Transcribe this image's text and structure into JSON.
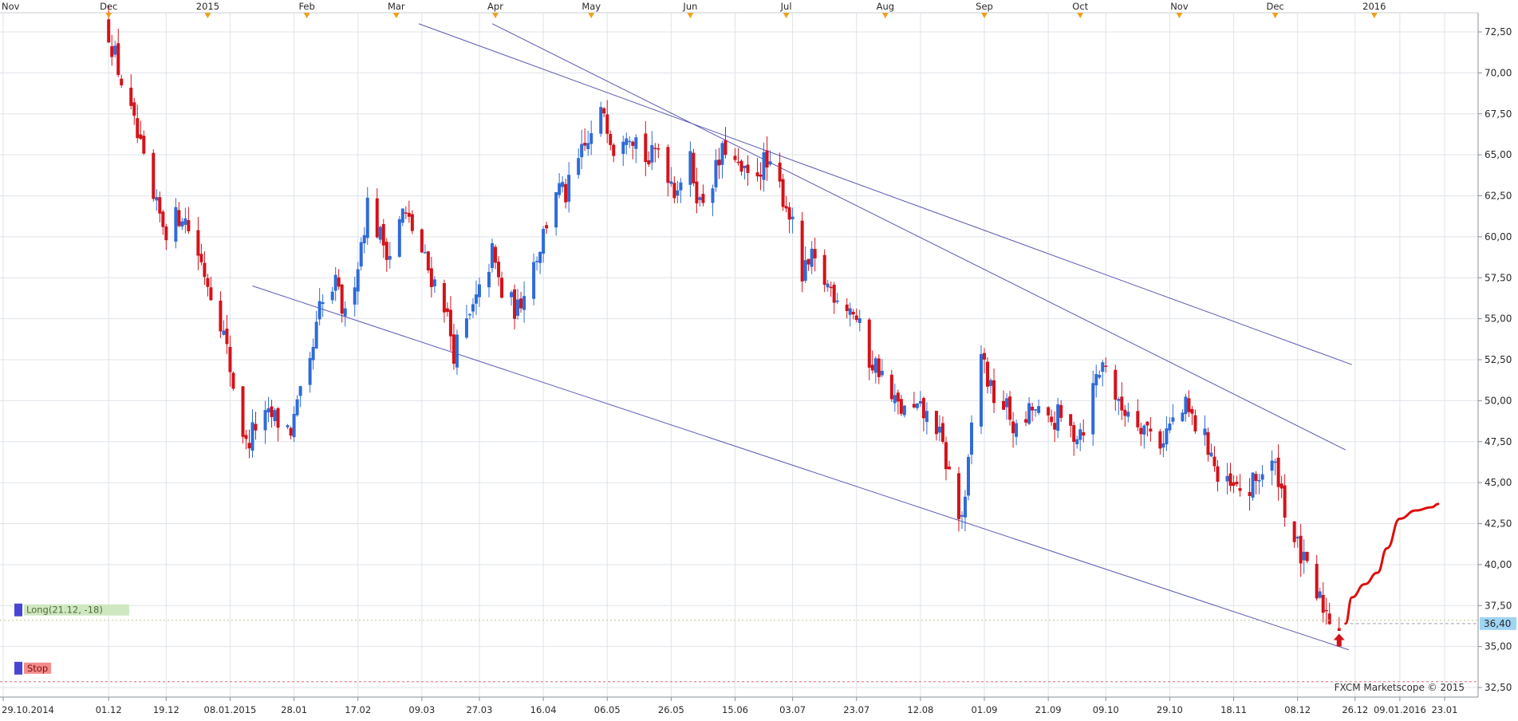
{
  "chart_data": {
    "type": "candlestick",
    "y_axis": {
      "min": 32.5,
      "max": 73.4,
      "ticks": [
        "72,50",
        "70,00",
        "67,50",
        "65,00",
        "62,50",
        "60,00",
        "57,50",
        "55,00",
        "52,50",
        "50,00",
        "47,50",
        "45,00",
        "42,50",
        "40,00",
        "37,50",
        "35,00",
        "32,50"
      ],
      "tick_values": [
        72.5,
        70,
        67.5,
        65,
        62.5,
        60,
        57.5,
        55,
        52.5,
        50,
        47.5,
        45,
        42.5,
        40,
        37.5,
        35,
        32.5
      ]
    },
    "x_axis": {
      "start": "2014-10-29",
      "end": "2016-01-28",
      "date_labels": [
        {
          "date": "2014-10-29",
          "label": "29.10.2014"
        },
        {
          "date": "2014-12-01",
          "label": "01.12"
        },
        {
          "date": "2014-12-19",
          "label": "19.12"
        },
        {
          "date": "2015-01-08",
          "label": "08.01.2015"
        },
        {
          "date": "2015-01-28",
          "label": "28.01"
        },
        {
          "date": "2015-02-17",
          "label": "17.02"
        },
        {
          "date": "2015-03-09",
          "label": "09.03"
        },
        {
          "date": "2015-03-27",
          "label": "27.03"
        },
        {
          "date": "2015-04-16",
          "label": "16.04"
        },
        {
          "date": "2015-05-06",
          "label": "06.05"
        },
        {
          "date": "2015-05-26",
          "label": "26.05"
        },
        {
          "date": "2015-06-15",
          "label": "15.06"
        },
        {
          "date": "2015-07-03",
          "label": "03.07"
        },
        {
          "date": "2015-07-23",
          "label": "23.07"
        },
        {
          "date": "2015-08-12",
          "label": "12.08"
        },
        {
          "date": "2015-09-01",
          "label": "01.09"
        },
        {
          "date": "2015-09-21",
          "label": "21.09"
        },
        {
          "date": "2015-10-09",
          "label": "09.10"
        },
        {
          "date": "2015-10-29",
          "label": "29.10"
        },
        {
          "date": "2015-11-18",
          "label": "18.11"
        },
        {
          "date": "2015-12-08",
          "label": "08.12"
        },
        {
          "date": "2015-12-26",
          "label": "26.12"
        },
        {
          "date": "2016-01-09",
          "label": "09.01.2016"
        },
        {
          "date": "2016-01-23",
          "label": "23.01"
        }
      ],
      "month_labels": [
        {
          "date": "2014-11-01",
          "label": "Nov"
        },
        {
          "date": "2014-12-01",
          "label": "Dec"
        },
        {
          "date": "2015-01-01",
          "label": "2015"
        },
        {
          "date": "2015-02-01",
          "label": "Feb"
        },
        {
          "date": "2015-03-01",
          "label": "Mar"
        },
        {
          "date": "2015-04-01",
          "label": "Apr"
        },
        {
          "date": "2015-05-01",
          "label": "May"
        },
        {
          "date": "2015-06-01",
          "label": "Jun"
        },
        {
          "date": "2015-07-01",
          "label": "Jul"
        },
        {
          "date": "2015-08-01",
          "label": "Aug"
        },
        {
          "date": "2015-09-01",
          "label": "Sep"
        },
        {
          "date": "2015-10-01",
          "label": "Oct"
        },
        {
          "date": "2015-11-01",
          "label": "Nov"
        },
        {
          "date": "2015-12-01",
          "label": "Dec"
        },
        {
          "date": "2016-01-01",
          "label": "2016"
        }
      ]
    },
    "anchors": [
      {
        "date": "2014-12-01",
        "close": 72.5
      },
      {
        "date": "2014-12-05",
        "close": 69.5
      },
      {
        "date": "2014-12-10",
        "close": 66.0
      },
      {
        "date": "2014-12-15",
        "close": 62.0
      },
      {
        "date": "2014-12-19",
        "close": 60.5
      },
      {
        "date": "2014-12-24",
        "close": 61.5
      },
      {
        "date": "2014-12-29",
        "close": 59.0
      },
      {
        "date": "2015-01-05",
        "close": 55.0
      },
      {
        "date": "2015-01-09",
        "close": 51.0
      },
      {
        "date": "2015-01-13",
        "close": 47.2
      },
      {
        "date": "2015-01-16",
        "close": 48.5
      },
      {
        "date": "2015-01-21",
        "close": 49.0
      },
      {
        "date": "2015-01-27",
        "close": 48.2
      },
      {
        "date": "2015-02-02",
        "close": 52.0
      },
      {
        "date": "2015-02-05",
        "close": 55.5
      },
      {
        "date": "2015-02-10",
        "close": 57.0
      },
      {
        "date": "2015-02-13",
        "close": 55.0
      },
      {
        "date": "2015-02-17",
        "close": 58.5
      },
      {
        "date": "2015-02-20",
        "close": 62.0
      },
      {
        "date": "2015-02-24",
        "close": 60.0
      },
      {
        "date": "2015-02-27",
        "close": 59.0
      },
      {
        "date": "2015-03-03",
        "close": 61.5
      },
      {
        "date": "2015-03-06",
        "close": 60.5
      },
      {
        "date": "2015-03-11",
        "close": 58.0
      },
      {
        "date": "2015-03-16",
        "close": 56.0
      },
      {
        "date": "2015-03-19",
        "close": 53.0
      },
      {
        "date": "2015-03-24",
        "close": 55.0
      },
      {
        "date": "2015-03-27",
        "close": 56.5
      },
      {
        "date": "2015-03-31",
        "close": 59.0
      },
      {
        "date": "2015-04-03",
        "close": 56.5
      },
      {
        "date": "2015-04-08",
        "close": 55.5
      },
      {
        "date": "2015-04-10",
        "close": 57.0
      },
      {
        "date": "2015-04-15",
        "close": 59.5
      },
      {
        "date": "2015-04-20",
        "close": 63.0
      },
      {
        "date": "2015-04-23",
        "close": 62.5
      },
      {
        "date": "2015-04-28",
        "close": 65.0
      },
      {
        "date": "2015-05-01",
        "close": 66.0
      },
      {
        "date": "2015-05-05",
        "close": 67.8
      },
      {
        "date": "2015-05-08",
        "close": 65.5
      },
      {
        "date": "2015-05-12",
        "close": 66.8
      },
      {
        "date": "2015-05-15",
        "close": 66.0
      },
      {
        "date": "2015-05-19",
        "close": 64.5
      },
      {
        "date": "2015-05-22",
        "close": 65.5
      },
      {
        "date": "2015-05-27",
        "close": 63.0
      },
      {
        "date": "2015-06-01",
        "close": 64.5
      },
      {
        "date": "2015-06-04",
        "close": 62.0
      },
      {
        "date": "2015-06-09",
        "close": 64.0
      },
      {
        "date": "2015-06-12",
        "close": 65.5
      },
      {
        "date": "2015-06-16",
        "close": 64.0
      },
      {
        "date": "2015-06-19",
        "close": 63.5
      },
      {
        "date": "2015-06-24",
        "close": 64.5
      },
      {
        "date": "2015-06-29",
        "close": 63.0
      },
      {
        "date": "2015-07-02",
        "close": 61.5
      },
      {
        "date": "2015-07-06",
        "close": 57.5
      },
      {
        "date": "2015-07-09",
        "close": 58.5
      },
      {
        "date": "2015-07-14",
        "close": 57.0
      },
      {
        "date": "2015-07-17",
        "close": 56.5
      },
      {
        "date": "2015-07-22",
        "close": 55.5
      },
      {
        "date": "2015-07-27",
        "close": 52.5
      },
      {
        "date": "2015-07-30",
        "close": 52.0
      },
      {
        "date": "2015-08-03",
        "close": 50.0
      },
      {
        "date": "2015-08-07",
        "close": 49.3
      },
      {
        "date": "2015-08-12",
        "close": 49.3
      },
      {
        "date": "2015-08-17",
        "close": 48.5
      },
      {
        "date": "2015-08-21",
        "close": 45.5
      },
      {
        "date": "2015-08-24",
        "close": 42.8
      },
      {
        "date": "2015-08-26",
        "close": 43.5
      },
      {
        "date": "2015-08-28",
        "close": 48.5
      },
      {
        "date": "2015-08-31",
        "close": 53.0
      },
      {
        "date": "2015-09-03",
        "close": 50.5
      },
      {
        "date": "2015-09-08",
        "close": 49.5
      },
      {
        "date": "2015-09-11",
        "close": 48.0
      },
      {
        "date": "2015-09-16",
        "close": 49.5
      },
      {
        "date": "2015-09-21",
        "close": 48.5
      },
      {
        "date": "2015-09-24",
        "close": 49.0
      },
      {
        "date": "2015-09-29",
        "close": 48.0
      },
      {
        "date": "2015-10-02",
        "close": 48.5
      },
      {
        "date": "2015-10-06",
        "close": 51.5
      },
      {
        "date": "2015-10-09",
        "close": 52.5
      },
      {
        "date": "2015-10-13",
        "close": 49.5
      },
      {
        "date": "2015-10-16",
        "close": 49.5
      },
      {
        "date": "2015-10-21",
        "close": 48.5
      },
      {
        "date": "2015-10-26",
        "close": 47.5
      },
      {
        "date": "2015-10-29",
        "close": 48.5
      },
      {
        "date": "2015-11-03",
        "close": 49.5
      },
      {
        "date": "2015-11-06",
        "close": 48.5
      },
      {
        "date": "2015-11-11",
        "close": 47.0
      },
      {
        "date": "2015-11-13",
        "close": 45.0
      },
      {
        "date": "2015-11-18",
        "close": 44.5
      },
      {
        "date": "2015-11-23",
        "close": 44.5
      },
      {
        "date": "2015-11-26",
        "close": 45.5
      },
      {
        "date": "2015-11-30",
        "close": 46.0
      },
      {
        "date": "2015-12-02",
        "close": 45.5
      },
      {
        "date": "2015-12-04",
        "close": 43.5
      },
      {
        "date": "2015-12-07",
        "close": 41.5
      },
      {
        "date": "2015-12-09",
        "close": 40.5
      },
      {
        "date": "2015-12-11",
        "close": 39.5
      },
      {
        "date": "2015-12-14",
        "close": 38.0
      },
      {
        "date": "2015-12-16",
        "close": 37.5
      },
      {
        "date": "2015-12-18",
        "close": 36.8
      },
      {
        "date": "2015-12-21",
        "close": 36.4
      }
    ],
    "trendlines": [
      {
        "name": "upper-channel",
        "points": [
          {
            "date": "2015-03-08",
            "value": 73.0
          },
          {
            "date": "2015-12-25",
            "value": 52.2
          }
        ]
      },
      {
        "name": "middle-trendline",
        "points": [
          {
            "date": "2015-03-31",
            "value": 73.0
          },
          {
            "date": "2015-12-23",
            "value": 47.0
          }
        ]
      },
      {
        "name": "lower-channel",
        "points": [
          {
            "date": "2015-01-15",
            "value": 57.0
          },
          {
            "date": "2015-12-24",
            "value": 34.8
          }
        ]
      }
    ],
    "forecast": [
      {
        "date": "2015-12-23",
        "value": 36.4
      },
      {
        "date": "2015-12-25",
        "value": 38.0
      },
      {
        "date": "2015-12-29",
        "value": 38.8
      },
      {
        "date": "2016-01-02",
        "value": 39.5
      },
      {
        "date": "2016-01-05",
        "value": 41.0
      },
      {
        "date": "2016-01-09",
        "value": 42.8
      },
      {
        "date": "2016-01-14",
        "value": 43.3
      },
      {
        "date": "2016-01-19",
        "value": 43.5
      },
      {
        "date": "2016-01-21",
        "value": 43.7
      }
    ],
    "current_price": {
      "value": 36.4,
      "label": "36,40"
    },
    "long_marker": {
      "label": "Long(21.12, -18)",
      "value": 36.6
    },
    "stop_marker": {
      "label": "Stop",
      "value": 32.85
    },
    "entry_arrow": {
      "date": "2015-12-21",
      "value": 35.3
    },
    "colors": {
      "bull": "#2f6bd8",
      "bear": "#d4121a",
      "trendline": "#5a5ab4",
      "forecast": "#dd0e0e",
      "grid": "#dfe3ea",
      "current_price_bg": "#9ed4f4",
      "long_bg": "#cfe8c2",
      "stop_bg": "#f48c8c",
      "marker_square": "#4646d2",
      "month_triangle": "#f0a020"
    },
    "watermark": "FXCM Marketscope © 2015"
  }
}
